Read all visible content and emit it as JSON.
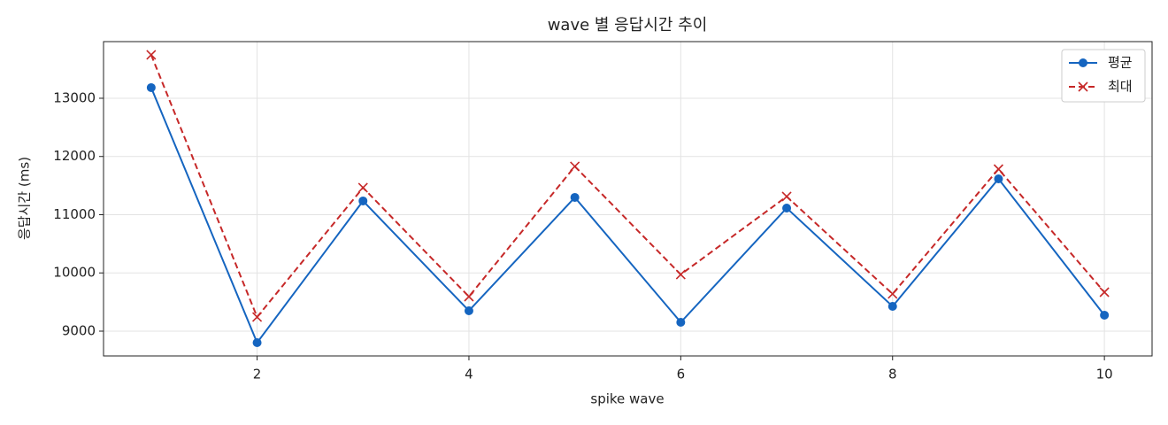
{
  "chart_data": {
    "type": "line",
    "title": "wave 별 응답시간 추이",
    "x_label": "spike wave",
    "y_label": "응답시간 (ms)",
    "x": [
      1,
      2,
      3,
      4,
      5,
      6,
      7,
      8,
      9,
      10
    ],
    "series": [
      {
        "name": "평균",
        "color": "#1565c0",
        "marker": "o",
        "linestyle": "solid",
        "values": [
          13183,
          8802,
          11236,
          9350,
          11297,
          9152,
          11114,
          9426,
          11616,
          9274
        ]
      },
      {
        "name": "최대",
        "color": "#c62828",
        "marker": "x",
        "linestyle": "dashed",
        "values": [
          13745,
          9243,
          11464,
          9593,
          11829,
          9973,
          11312,
          9639,
          11783,
          9669
        ]
      }
    ],
    "xlim": [
      0.55,
      10.45
    ],
    "xticks": [
      2,
      4,
      6,
      8,
      10
    ],
    "ylim": [
      8574,
      13973
    ],
    "yticks": [
      9000,
      10000,
      11000,
      12000,
      13000
    ],
    "grid": true,
    "legend": "upper right"
  }
}
